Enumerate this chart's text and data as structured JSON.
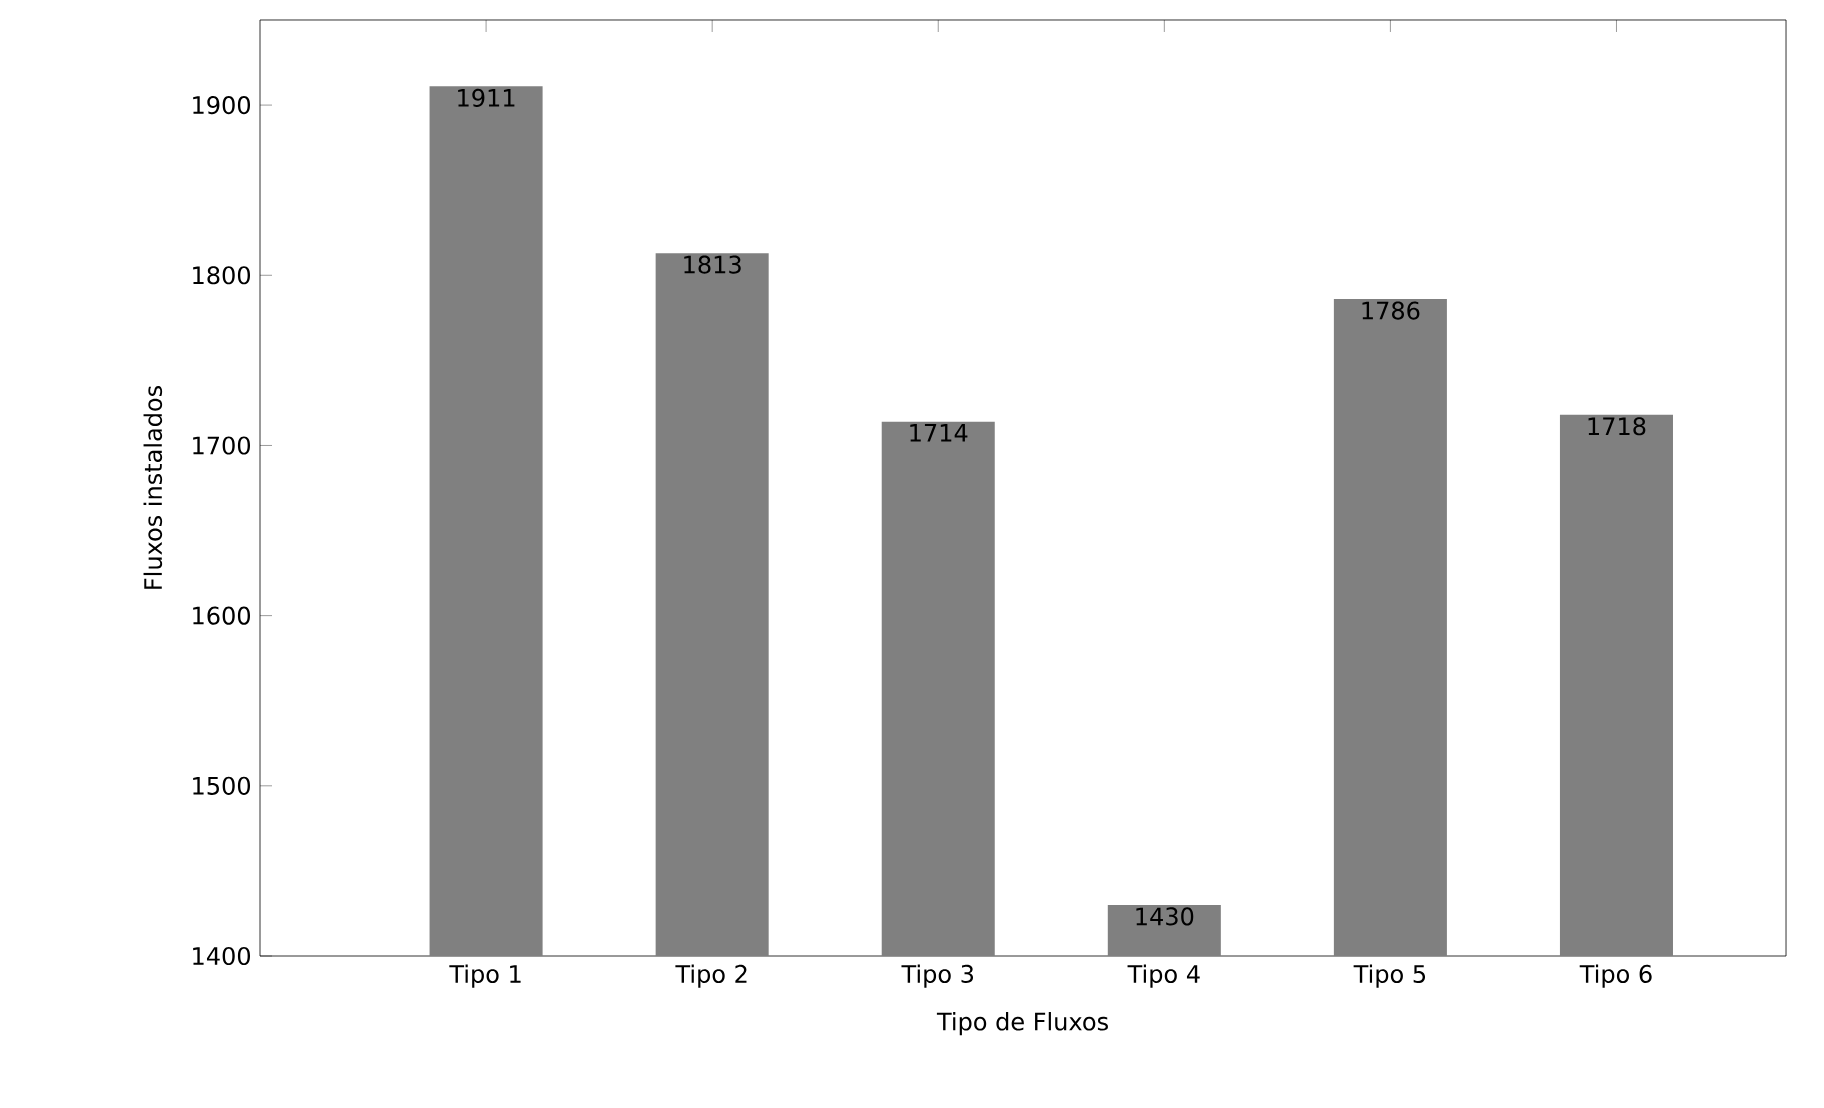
{
  "chart_data": {
    "type": "bar",
    "xlabel": "Tipo de Fluxos",
    "ylabel": "Fluxos instalados",
    "categories": [
      "Tipo 1",
      "Tipo 2",
      "Tipo 3",
      "Tipo 4",
      "Tipo 5",
      "Tipo 6"
    ],
    "values": [
      1911,
      1813,
      1714,
      1430,
      1786,
      1718
    ],
    "color": "#808080",
    "data_labels": true,
    "ylim": [
      1400,
      1950
    ],
    "yticks": [
      1400,
      1500,
      1600,
      1700,
      1800,
      1900
    ],
    "grid": false
  }
}
